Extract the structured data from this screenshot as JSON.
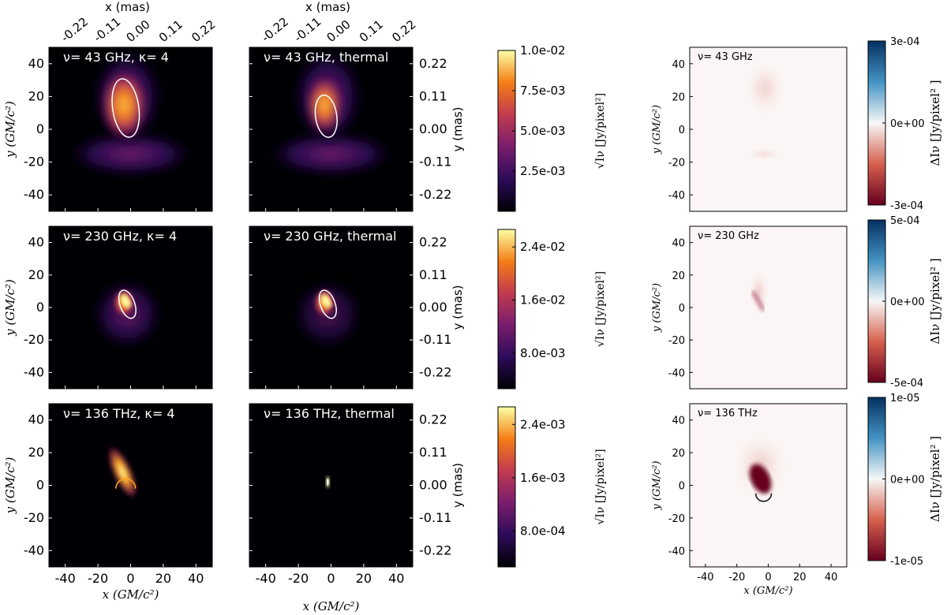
{
  "figure": {
    "x_label": "x (GM/c²)",
    "y_label": "y (GM/c²)",
    "top_x_label": "x (mas)",
    "right_y_label": "y (mas)",
    "intensity_label": "√Iν [Jy/pixel²]",
    "diff_label": "ΔIν [Jy/pixel² ]"
  },
  "chart_data": [
    {
      "type": "heatmap",
      "title": "ν= 43 GHz, κ= 4",
      "row": 0,
      "column": "kappa",
      "xlim": [
        -50,
        50
      ],
      "ylim": [
        -50,
        50
      ],
      "x_ticks": [
        -40,
        -20,
        0,
        20,
        40
      ],
      "y_ticks": [
        40,
        20,
        0,
        -20,
        -40
      ],
      "top_x_ticks": [
        "-0.22",
        "-0.11",
        "0.00",
        "0.11",
        "0.22"
      ],
      "colormap": "inferno",
      "beam_ellipse": {
        "center": [
          -3,
          13
        ],
        "semi_axes": [
          8,
          18
        ],
        "angle_deg": -8
      }
    },
    {
      "type": "heatmap",
      "title": "ν= 43 GHz, thermal",
      "row": 0,
      "column": "thermal",
      "xlim": [
        -50,
        50
      ],
      "ylim": [
        -50,
        50
      ],
      "x_ticks": [
        -40,
        -20,
        0,
        20,
        40
      ],
      "y_ticks": [
        40,
        20,
        0,
        -20,
        -40
      ],
      "top_x_ticks": [
        "-0.22",
        "-0.11",
        "0.00",
        "0.11",
        "0.22"
      ],
      "right_y_ticks": [
        "0.22",
        "0.11",
        "0.00",
        "-0.11",
        "-0.22"
      ],
      "colormap": "inferno",
      "beam_ellipse": {
        "center": [
          -3,
          8
        ],
        "semi_axes": [
          6.5,
          13
        ],
        "angle_deg": -8
      },
      "colorbar": {
        "ticks": [
          "1.0e-02",
          "7.5e-03",
          "5.0e-03",
          "2.5e-03"
        ]
      }
    },
    {
      "type": "heatmap",
      "title": "ν= 43 GHz",
      "row": 0,
      "column": "difference",
      "xlim": [
        -50,
        50
      ],
      "ylim": [
        -50,
        50
      ],
      "y_ticks": [
        40,
        20,
        0,
        -20,
        -40
      ],
      "colormap": "RdBu",
      "colorbar": {
        "ticks": [
          "3e-04",
          "0e+00",
          "-3e-04"
        ],
        "range": [
          -0.0003,
          0.0003
        ]
      }
    },
    {
      "type": "heatmap",
      "title": "ν= 230 GHz, κ= 4",
      "row": 1,
      "column": "kappa",
      "xlim": [
        -50,
        50
      ],
      "ylim": [
        -50,
        50
      ],
      "x_ticks": [
        -40,
        -20,
        0,
        20,
        40
      ],
      "y_ticks": [
        40,
        20,
        0,
        -20,
        -40
      ],
      "colormap": "inferno",
      "beam_ellipse": {
        "center": [
          -2,
          2
        ],
        "semi_axes": [
          4.5,
          9
        ],
        "angle_deg": -20
      }
    },
    {
      "type": "heatmap",
      "title": "ν= 230 GHz, thermal",
      "row": 1,
      "column": "thermal",
      "xlim": [
        -50,
        50
      ],
      "ylim": [
        -50,
        50
      ],
      "x_ticks": [
        -40,
        -20,
        0,
        20,
        40
      ],
      "y_ticks": [
        40,
        20,
        0,
        -20,
        -40
      ],
      "right_y_ticks": [
        "0.22",
        "0.11",
        "0.00",
        "-0.11",
        "-0.22"
      ],
      "colormap": "inferno",
      "beam_ellipse": {
        "center": [
          -2,
          2
        ],
        "semi_axes": [
          4.5,
          9
        ],
        "angle_deg": -20
      },
      "colorbar": {
        "ticks": [
          "2.4e-02",
          "1.6e-02",
          "8.0e-03"
        ]
      }
    },
    {
      "type": "heatmap",
      "title": "ν= 230 GHz",
      "row": 1,
      "column": "difference",
      "xlim": [
        -50,
        50
      ],
      "ylim": [
        -50,
        50
      ],
      "y_ticks": [
        40,
        20,
        0,
        -20,
        -40
      ],
      "colormap": "RdBu",
      "colorbar": {
        "ticks": [
          "5e-04",
          "0e+00",
          "-5e-04"
        ],
        "range": [
          -0.0005,
          0.0005
        ]
      }
    },
    {
      "type": "heatmap",
      "title": "ν= 136 THz, κ= 4",
      "row": 2,
      "column": "kappa",
      "xlim": [
        -50,
        50
      ],
      "ylim": [
        -50,
        50
      ],
      "x_ticks": [
        -40,
        -20,
        0,
        20,
        40
      ],
      "y_ticks": [
        40,
        20,
        0,
        -20,
        -40
      ],
      "colormap": "inferno"
    },
    {
      "type": "heatmap",
      "title": "ν= 136 THz, thermal",
      "row": 2,
      "column": "thermal",
      "xlim": [
        -50,
        50
      ],
      "ylim": [
        -50,
        50
      ],
      "x_ticks": [
        -40,
        -20,
        0,
        20,
        40
      ],
      "y_ticks": [
        40,
        20,
        0,
        -20,
        -40
      ],
      "right_y_ticks": [
        "0.22",
        "0.11",
        "0.00",
        "-0.11",
        "-0.22"
      ],
      "colormap": "inferno",
      "colorbar": {
        "ticks": [
          "2.4e-03",
          "1.6e-03",
          "8.0e-04"
        ]
      }
    },
    {
      "type": "heatmap",
      "title": "ν= 136 THz",
      "row": 2,
      "column": "difference",
      "xlim": [
        -50,
        50
      ],
      "ylim": [
        -50,
        50
      ],
      "x_ticks": [
        -40,
        -20,
        0,
        20,
        40
      ],
      "y_ticks": [
        40,
        20,
        0,
        -20,
        -40
      ],
      "colormap": "RdBu",
      "colorbar": {
        "ticks": [
          "1e-05",
          "0e+00",
          "-1e-05"
        ],
        "range": [
          -1e-05,
          1e-05
        ]
      }
    }
  ]
}
